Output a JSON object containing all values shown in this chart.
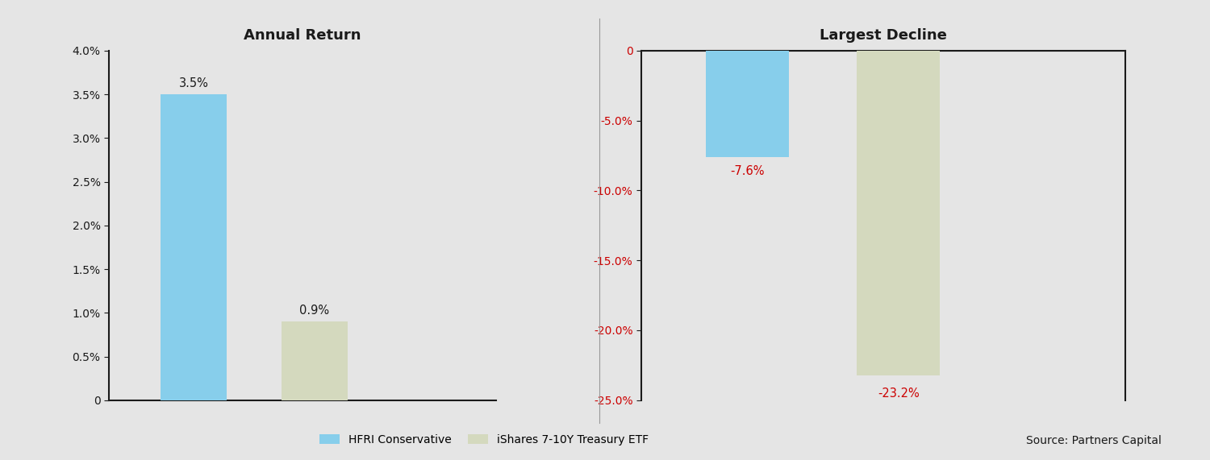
{
  "background_color": "#e5e5e5",
  "left_chart": {
    "title": "Annual Return",
    "values": [
      3.5,
      0.9
    ],
    "bar_colors": [
      "#87CEEB",
      "#d4d9be"
    ],
    "bar_labels": [
      "3.5%",
      "0.9%"
    ],
    "ylim": [
      0,
      4.0
    ],
    "yticks": [
      0,
      0.5,
      1.0,
      1.5,
      2.0,
      2.5,
      3.0,
      3.5,
      4.0
    ],
    "ytick_labels": [
      "0",
      "0.5%",
      "1.0%",
      "1.5%",
      "2.0%",
      "2.5%",
      "3.0%",
      "3.5%",
      "4.0%"
    ],
    "x_positions": [
      1,
      2
    ],
    "xlim": [
      0.3,
      3.5
    ],
    "bar_width": 0.55
  },
  "right_chart": {
    "title": "Largest Decline",
    "values": [
      -7.6,
      -23.2
    ],
    "bar_colors": [
      "#87CEEB",
      "#d4d9be"
    ],
    "bar_labels": [
      "-7.6%",
      "-23.2%"
    ],
    "ylim": [
      -25.0,
      0
    ],
    "yticks": [
      0,
      -5.0,
      -10.0,
      -15.0,
      -20.0,
      -25.0
    ],
    "ytick_labels": [
      "0",
      "-5.0%",
      "-10.0%",
      "-15.0%",
      "-20.0%",
      "-25.0%"
    ],
    "x_positions": [
      1,
      2
    ],
    "xlim": [
      0.3,
      3.5
    ],
    "bar_width": 0.55
  },
  "legend": {
    "labels": [
      "HFRI Conservative",
      "iShares 7-10Y Treasury ETF"
    ],
    "colors": [
      "#87CEEB",
      "#d4d9be"
    ]
  },
  "source_text": "Source: Partners Capital",
  "title_fontsize": 13,
  "label_fontsize": 10,
  "tick_fontsize": 10,
  "bar_label_fontsize": 10.5,
  "axis_color": "#1a1a1a",
  "right_tick_color": "#cc0000",
  "right_label_color": "#cc0000"
}
